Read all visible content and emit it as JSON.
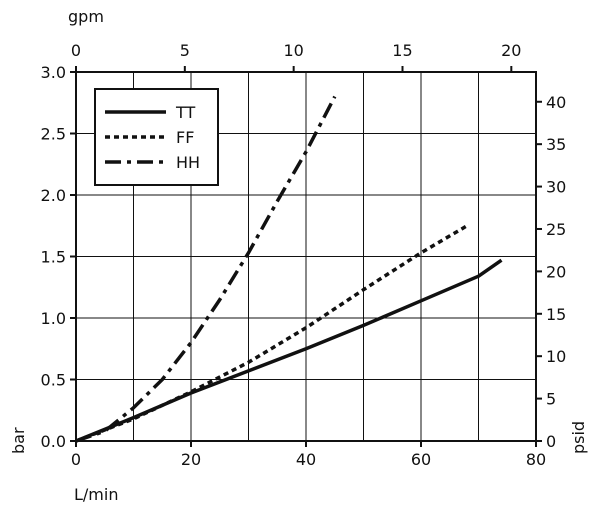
{
  "chart_data": {
    "type": "line",
    "x_axis": {
      "label": "L/min",
      "range": [
        0,
        80
      ],
      "ticks": [
        0,
        20,
        40,
        60,
        80
      ]
    },
    "x2_axis": {
      "label": "gpm",
      "range": [
        0,
        21.134
      ],
      "ticks": [
        0,
        5,
        10,
        15,
        20
      ]
    },
    "y_axis": {
      "label": "bar",
      "range": [
        0,
        3.0
      ],
      "ticks": [
        0.0,
        0.5,
        1.0,
        1.5,
        2.0,
        2.5,
        3.0
      ],
      "tick_labels": [
        "0.0",
        "0.5",
        "1.0",
        "1.5",
        "2.0",
        "2.5",
        "3.0"
      ]
    },
    "y2_axis": {
      "label": "psid",
      "range": [
        0,
        43.51
      ],
      "ticks": [
        0,
        5,
        10,
        15,
        20,
        25,
        30,
        35,
        40
      ]
    },
    "grid": true,
    "legend_position": "top-left",
    "series": [
      {
        "name": "TT",
        "style": "solid",
        "x": [
          0,
          10,
          20,
          30,
          40,
          50,
          60,
          70,
          74
        ],
        "y": [
          0.0,
          0.19,
          0.39,
          0.57,
          0.75,
          0.94,
          1.14,
          1.34,
          1.47
        ]
      },
      {
        "name": "FF",
        "style": "dotted",
        "x": [
          0,
          10,
          20,
          30,
          40,
          50,
          60,
          68
        ],
        "y": [
          0.0,
          0.18,
          0.4,
          0.64,
          0.92,
          1.23,
          1.53,
          1.75
        ]
      },
      {
        "name": "HH",
        "style": "dash-dot",
        "x": [
          0,
          5,
          10,
          15,
          20,
          25,
          30,
          35,
          40,
          45
        ],
        "y": [
          0.0,
          0.08,
          0.27,
          0.5,
          0.8,
          1.15,
          1.53,
          1.95,
          2.35,
          2.8
        ]
      }
    ]
  }
}
